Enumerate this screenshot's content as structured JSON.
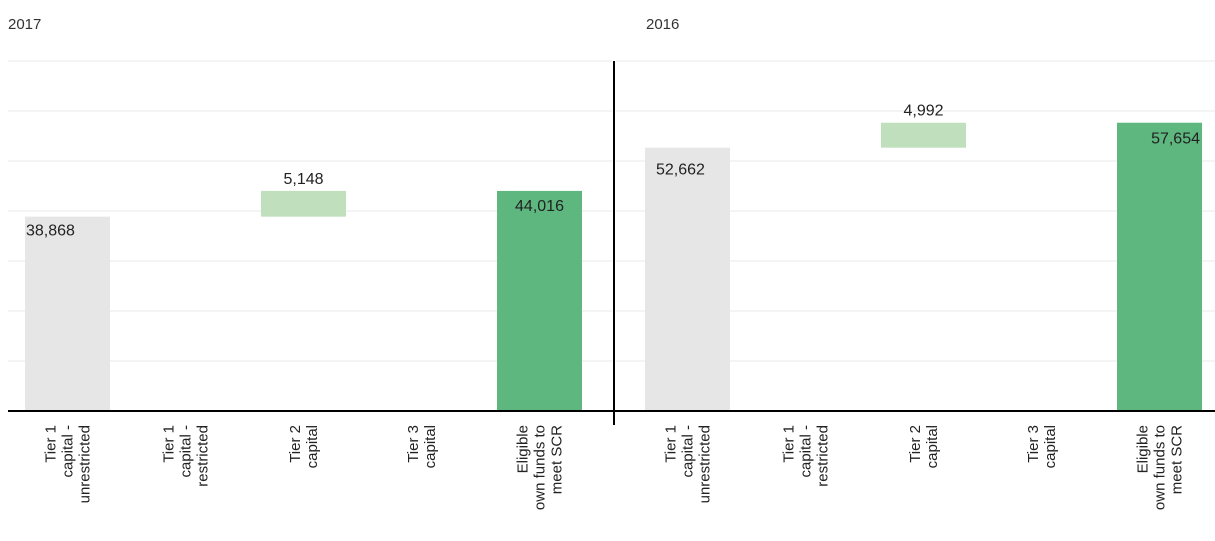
{
  "chart_data": [
    {
      "type": "bar",
      "subtype": "waterfall",
      "title": "2017",
      "categories": [
        "Tier 1 capital - unrestricted",
        "Tier 1 capital - restricted",
        "Tier 2 capital",
        "Tier 3 capital",
        "Eligible own funds to meet SCR"
      ],
      "category_lines": [
        [
          "Tier 1",
          "capital -",
          "unrestricted"
        ],
        [
          "Tier 1",
          "capital -",
          "restricted"
        ],
        [
          "Tier 2",
          "capital"
        ],
        [
          "Tier 3",
          "capital"
        ],
        [
          "Eligible",
          "own funds to",
          "meet SCR"
        ]
      ],
      "values": [
        38868,
        null,
        5148,
        null,
        44016
      ],
      "labels": [
        "38,868",
        "",
        "5,148",
        "",
        "44,016"
      ],
      "kinds": [
        "base",
        "delta",
        "delta",
        "delta",
        "total"
      ],
      "ylim": [
        0,
        70000
      ],
      "grid": true
    },
    {
      "type": "bar",
      "subtype": "waterfall",
      "title": "2016",
      "categories": [
        "Tier 1 capital - unrestricted",
        "Tier 1 capital - restricted",
        "Tier 2 capital",
        "Tier 3 capital",
        "Eligible own funds to meet SCR"
      ],
      "category_lines": [
        [
          "Tier 1",
          "capital -",
          "unrestricted"
        ],
        [
          "Tier 1",
          "capital -",
          "restricted"
        ],
        [
          "Tier 2",
          "capital"
        ],
        [
          "Tier 3",
          "capital"
        ],
        [
          "Eligible",
          "own funds to",
          "meet SCR"
        ]
      ],
      "values": [
        52662,
        null,
        4992,
        null,
        57654
      ],
      "labels": [
        "52,662",
        "",
        "4,992",
        "",
        "57,654"
      ],
      "kinds": [
        "base",
        "delta",
        "delta",
        "delta",
        "total"
      ],
      "ylim": [
        0,
        70000
      ],
      "grid": true
    }
  ],
  "colors": {
    "base": "#e6e6e6",
    "delta": "#bfdfbd",
    "total": "#5db77f",
    "grid": "#e8e8e8",
    "axis": "#000000"
  }
}
